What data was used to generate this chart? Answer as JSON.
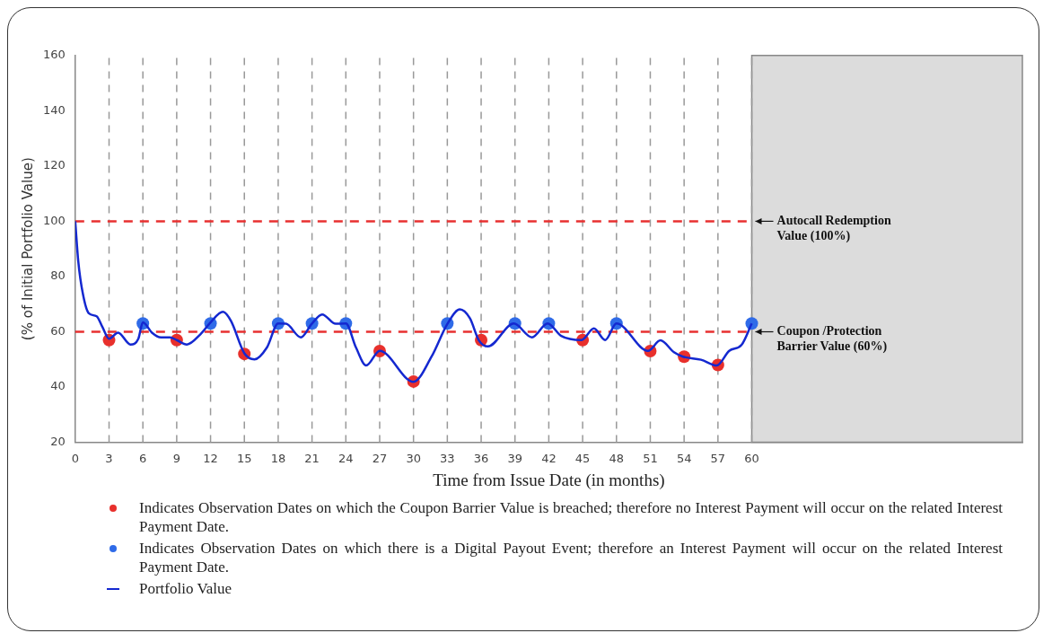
{
  "chart_data": {
    "type": "line",
    "xlabel": "Time from Issue Date (in months)",
    "ylabel": "(% of Initial Portfolio Value)",
    "xlim": [
      0,
      84
    ],
    "xticks": [
      0,
      3,
      6,
      9,
      12,
      15,
      18,
      21,
      24,
      27,
      30,
      33,
      36,
      39,
      42,
      45,
      48,
      51,
      54,
      57,
      60
    ],
    "ylim": [
      20,
      160
    ],
    "yticks": [
      20,
      40,
      60,
      80,
      100,
      120,
      140,
      160
    ],
    "grid": "x",
    "legend": "bottom",
    "series": [
      {
        "type": "scatter",
        "marker": "circle",
        "name": "Indicates Observation Dates on which the Coupon Barrier Value is breached; therefore no Interest Payment will occur on the related Interest Payment Date.",
        "color": "#e8302c",
        "x": [
          3,
          9,
          15,
          27,
          30,
          36,
          45,
          51,
          54,
          57
        ],
        "values": [
          57,
          57,
          52,
          53,
          42,
          57,
          57,
          53,
          51,
          48
        ]
      },
      {
        "type": "scatter",
        "marker": "circle",
        "name": "Indicates Observation Dates on which there is a Digital Payout Event; therefore an Interest Payment will occur on the related Interest Payment Date.",
        "color": "#2f6be8",
        "x": [
          6,
          12,
          18,
          21,
          24,
          33,
          39,
          42,
          48,
          60
        ],
        "values": [
          63,
          63,
          63,
          63,
          63,
          63,
          63,
          63,
          63,
          63
        ]
      },
      {
        "marker": "none",
        "name": "Portfolio Value",
        "color": "#1428d0",
        "x": [
          0,
          0.27,
          0.68,
          1.2,
          1.9,
          2.4,
          3,
          3.8,
          4.9,
          5.6,
          6,
          6.8,
          7.6,
          8.4,
          9,
          9.9,
          11.1,
          12,
          13.1,
          13.8,
          15,
          15.9,
          17,
          18,
          18.7,
          20,
          21,
          21.9,
          23.1,
          24,
          24.9,
          25.8,
          27,
          30,
          31.6,
          33,
          34.1,
          35,
          35.8,
          36.6,
          38.9,
          40.5,
          41.9,
          43.1,
          44.9,
          46,
          47,
          48,
          50.8,
          51.9,
          53.1,
          53.9,
          55.5,
          56.9,
          58,
          59.1,
          60
        ],
        "values": [
          100,
          85.5,
          73.7,
          66.7,
          65.6,
          61.8,
          57.5,
          59.7,
          55.4,
          57.5,
          63.4,
          59.7,
          58,
          58,
          57,
          55.4,
          59.1,
          63.4,
          67.2,
          64,
          52.2,
          50,
          54.3,
          63,
          62.9,
          58,
          63,
          66.3,
          62.9,
          63,
          54.3,
          47.8,
          53.1,
          41.9,
          51,
          62.8,
          68.1,
          64.9,
          56.9,
          54.7,
          63,
          58,
          63,
          58.5,
          57,
          61.2,
          57,
          63,
          53.1,
          56.9,
          52.6,
          51,
          49.9,
          47.8,
          53.1,
          55.3,
          63
        ]
      }
    ],
    "ref_lines": [
      {
        "axis": "y",
        "value": 100,
        "label": "Autocall Redemption Value (100%)",
        "color": "#e83030",
        "line_style": "dashed"
      },
      {
        "axis": "y",
        "value": 60,
        "label": "Coupon /Protection Barrier Value (60%)",
        "color": "#e83030",
        "line_style": "dashed"
      }
    ],
    "bands": [
      {
        "axis": "x",
        "from": 60,
        "to": 84,
        "color": "#dcdcdc"
      }
    ]
  }
}
